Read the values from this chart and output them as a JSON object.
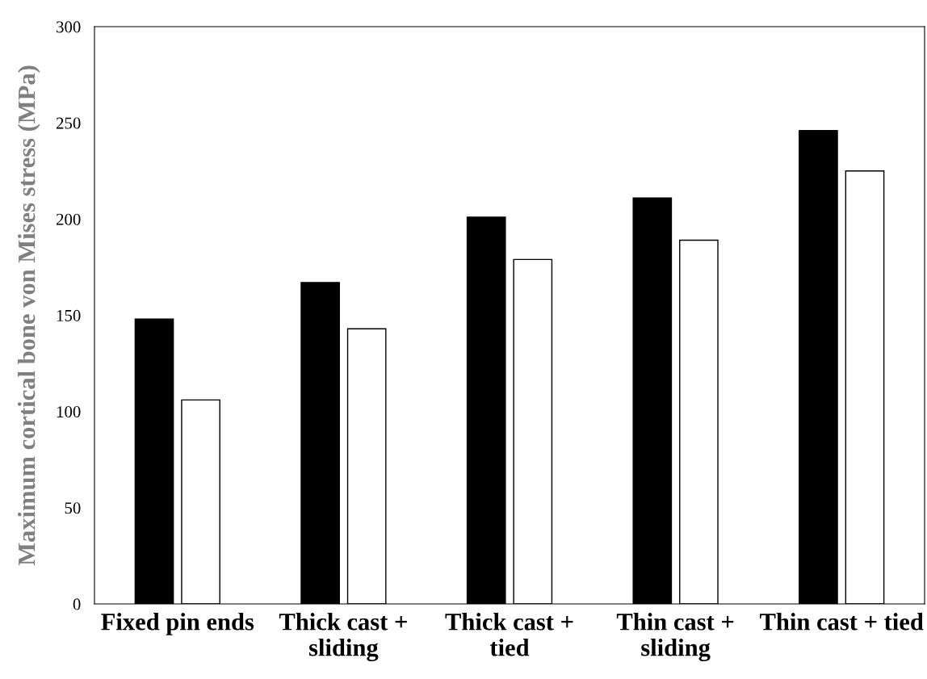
{
  "chart_data": {
    "type": "bar",
    "ylabel": "Maximum cortical bone von Mises stress (MPa)",
    "categories": [
      "Fixed pin ends",
      "Thick cast +\nsliding",
      "Thick cast +\ntied",
      "Thin cast +\nsliding",
      "Thin cast + tied"
    ],
    "series": [
      {
        "color": "#000000",
        "values": [
          148,
          167,
          201,
          211,
          246
        ]
      },
      {
        "color": "#ffffff",
        "values": [
          106,
          143,
          179,
          189,
          225
        ]
      }
    ],
    "ylim": [
      0,
      300
    ],
    "yticks": [
      0,
      50,
      100,
      150,
      200,
      250,
      300
    ],
    "grid": false,
    "legend": false
  }
}
